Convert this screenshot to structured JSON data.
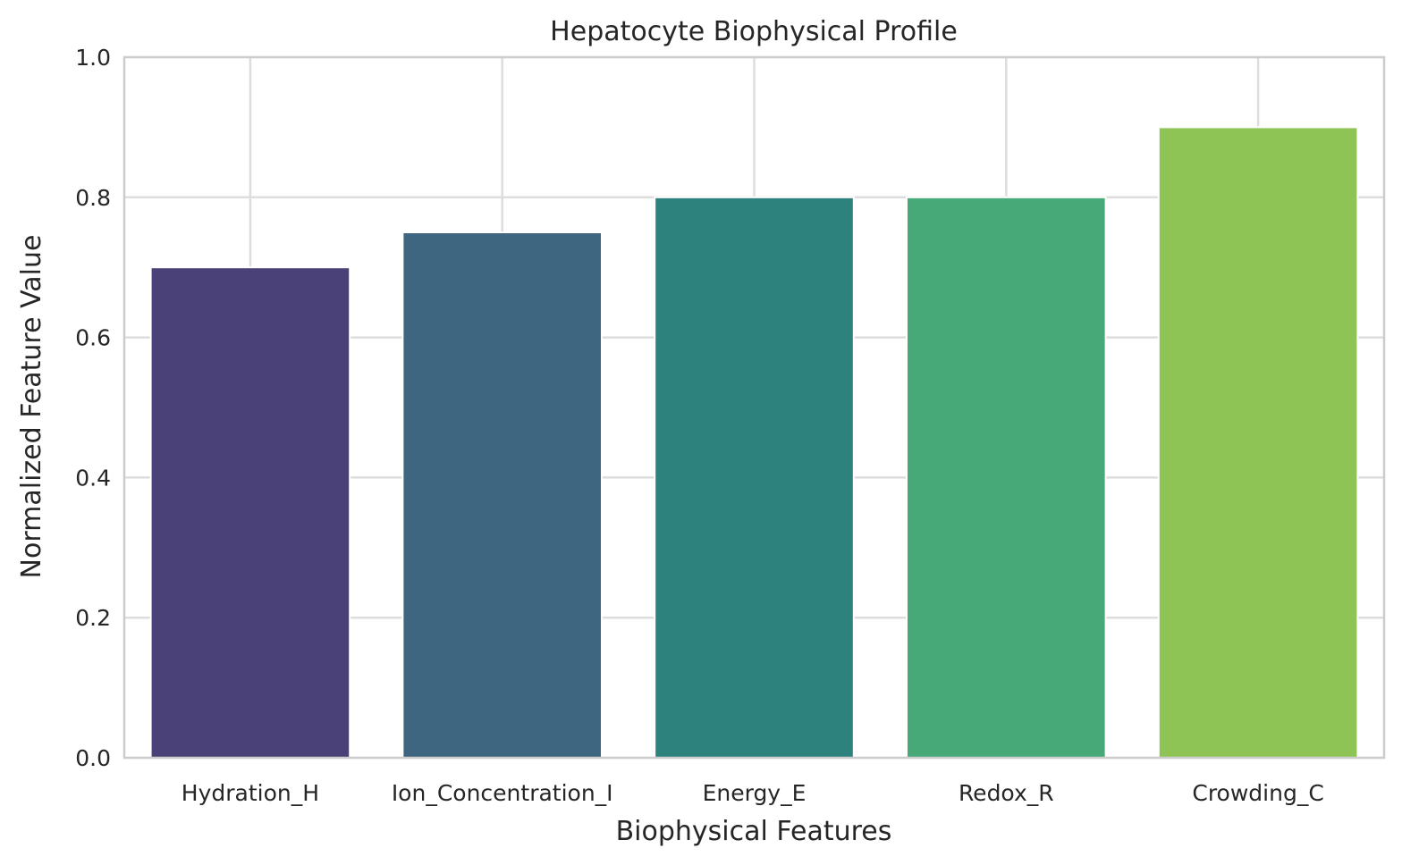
{
  "chart_data": {
    "type": "bar",
    "title": "Hepatocyte Biophysical Profile",
    "xlabel": "Biophysical Features",
    "ylabel": "Normalized Feature Value",
    "categories": [
      "Hydration_H",
      "Ion_Concentration_I",
      "Energy_E",
      "Redox_R",
      "Crowding_C"
    ],
    "values": [
      0.7,
      0.75,
      0.8,
      0.8,
      0.9
    ],
    "colors": [
      "#4a4178",
      "#3e6680",
      "#2e827e",
      "#47a878",
      "#8ec456"
    ],
    "ylim": [
      0,
      1.0
    ],
    "yticks": [
      "0.0",
      "0.2",
      "0.4",
      "0.6",
      "0.8",
      "1.0"
    ],
    "grid": true,
    "grid_color": "#dddddd",
    "frame_color": "#cccccc",
    "text_color": "#262626"
  }
}
